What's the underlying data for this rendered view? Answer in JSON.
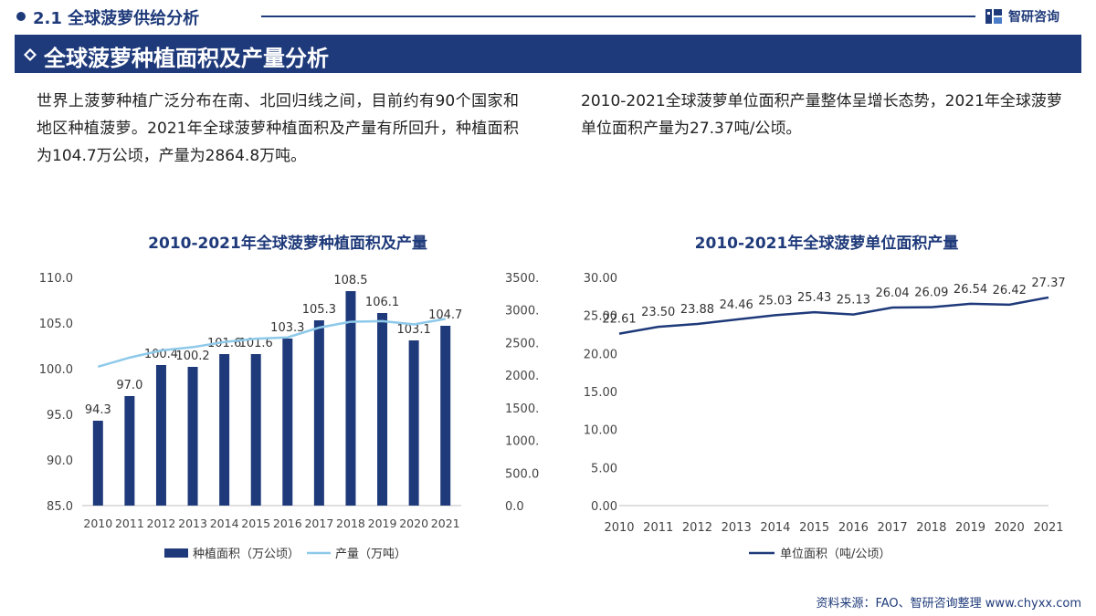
{
  "header": {
    "section_number_title": "2.1 全球菠萝供给分析",
    "brand_name": "智研咨询"
  },
  "banner": {
    "title": "全球菠萝种植面积及产量分析"
  },
  "paragraphs": {
    "left": "世界上菠萝种植广泛分布在南、北回归线之间，目前约有90个国家和地区种植菠萝。2021年全球菠萝种植面积及产量有所回升，种植面积为104.7万公顷，产量为2864.8万吨。",
    "right": "2010-2021全球菠萝单位面积产量整体呈增长态势，2021年全球菠萝单位面积产量为27.37吨/公顷。"
  },
  "chart_data": [
    {
      "type": "bar",
      "title": "2010-2021年全球菠萝种植面积及产量",
      "categories": [
        "2010",
        "2011",
        "2012",
        "2013",
        "2014",
        "2015",
        "2016",
        "2017",
        "2018",
        "2019",
        "2020",
        "2021"
      ],
      "series": [
        {
          "name": "种植面积（万公顷）",
          "type": "bar",
          "axis": "left",
          "values": [
            94.3,
            97.0,
            100.4,
            100.2,
            101.6,
            101.6,
            103.3,
            105.3,
            108.5,
            106.1,
            103.1,
            104.7
          ],
          "labels": [
            "94.3",
            "97.0",
            "100.4",
            "100.2",
            "101.6",
            "101.6",
            "103.3",
            "105.3",
            "108.5",
            "106.1",
            "103.1",
            "104.7"
          ],
          "color": "#1f3a7a"
        },
        {
          "name": "产量（万吨）",
          "type": "line",
          "axis": "right",
          "values": [
            2130,
            2270,
            2380,
            2430,
            2510,
            2560,
            2580,
            2730,
            2820,
            2830,
            2780,
            2864.8
          ],
          "color": "#8ec9ea"
        }
      ],
      "y_left": {
        "min": 85,
        "max": 110,
        "ticks": [
          "85.0",
          "90.0",
          "95.0",
          "100.0",
          "105.0",
          "110.0"
        ]
      },
      "y_right": {
        "min": 0,
        "max": 3500,
        "ticks": [
          "0.0",
          "500.0",
          "1000.0",
          "1500.0",
          "2000.0",
          "2500.0",
          "3000.0",
          "3500.0"
        ]
      },
      "legend_position": "bottom",
      "grid": false
    },
    {
      "type": "line",
      "title": "2010-2021年全球菠萝单位面积产量",
      "categories": [
        "2010",
        "2011",
        "2012",
        "2013",
        "2014",
        "2015",
        "2016",
        "2017",
        "2018",
        "2019",
        "2020",
        "2021"
      ],
      "series": [
        {
          "name": "单位面积（吨/公顷）",
          "values": [
            22.61,
            23.5,
            23.88,
            24.46,
            25.03,
            25.43,
            25.13,
            26.04,
            26.09,
            26.54,
            26.42,
            27.37
          ],
          "labels": [
            "22.61",
            "23.50",
            "23.88",
            "24.46",
            "25.03",
            "25.43",
            "25.13",
            "26.04",
            "26.09",
            "26.54",
            "26.42",
            "27.37"
          ],
          "color": "#1f3a7a"
        }
      ],
      "ylim": [
        0,
        30
      ],
      "y_ticks": [
        "0.00",
        "5.00",
        "10.00",
        "15.00",
        "20.00",
        "25.00",
        "30.00"
      ],
      "legend_position": "bottom",
      "grid": false
    }
  ],
  "source": "资料来源：FAO、智研咨询整理 www.chyxx.com"
}
